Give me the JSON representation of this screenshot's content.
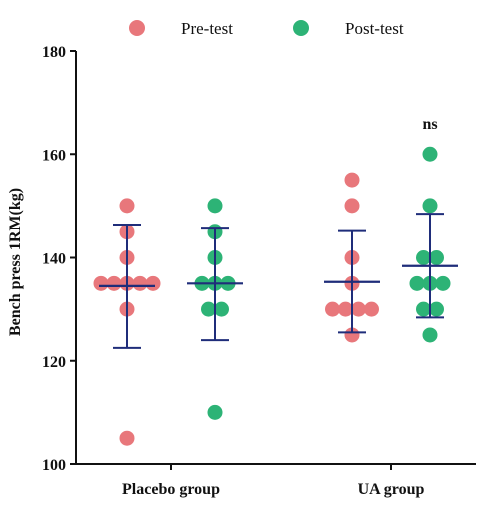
{
  "chart_data": {
    "type": "scatter",
    "ylabel": "Bench press 1RM(kg)",
    "xlabel": "",
    "ylim": [
      100,
      180
    ],
    "yticks": [
      100,
      120,
      140,
      160,
      180
    ],
    "categories": [
      "Placebo group",
      "UA group"
    ],
    "legend": {
      "placement": "top",
      "entries": [
        {
          "name": "Pre-test",
          "color": "#E8777B"
        },
        {
          "name": "Post-test",
          "color": "#2DB376"
        }
      ]
    },
    "groups": [
      {
        "category": "Placebo group",
        "series": [
          {
            "name": "Pre-test",
            "values": [
              150,
              145,
              140,
              135,
              135,
              135,
              135,
              135,
              130,
              105
            ],
            "mean": 134.5,
            "sd_low": 122.5,
            "sd_high": 146.3
          },
          {
            "name": "Post-test",
            "values": [
              150,
              145,
              140,
              135,
              135,
              135,
              130,
              130,
              110
            ],
            "mean": 135.0,
            "sd_low": 124.0,
            "sd_high": 145.7
          }
        ]
      },
      {
        "category": "UA group",
        "series": [
          {
            "name": "Pre-test",
            "values": [
              155,
              150,
              140,
              135,
              130,
              130,
              130,
              130,
              125
            ],
            "mean": 135.3,
            "sd_low": 125.5,
            "sd_high": 145.2
          },
          {
            "name": "Post-test",
            "values": [
              160,
              150,
              140,
              140,
              135,
              135,
              135,
              130,
              130,
              125
            ],
            "mean": 138.4,
            "sd_low": 128.4,
            "sd_high": 148.4,
            "annotation": "ns"
          }
        ]
      }
    ],
    "colors": {
      "pre": "#E8777B",
      "post": "#2DB376",
      "errorbar": "#1F2D7A",
      "axis": "#111111"
    }
  }
}
